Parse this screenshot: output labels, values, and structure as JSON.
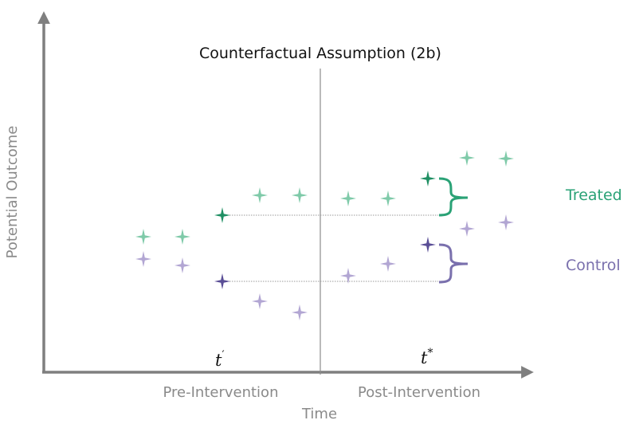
{
  "title": "Counterfactual Assumption (2b)",
  "axes": {
    "x_label": "Time",
    "y_label": "Potential Outcome"
  },
  "phases": {
    "pre": "Pre-Intervention",
    "post": "Post-Intervention"
  },
  "time_marks": {
    "t_prime_base": "t",
    "t_prime_sup": "′",
    "t_star_base": "t",
    "t_star_sup": "*"
  },
  "legend": {
    "treated": "Treated",
    "control": "Control"
  },
  "colors": {
    "treated": "#7fcaa9",
    "treated_highlight": "#1f8f63",
    "control": "#b2a6d3",
    "control_highlight": "#5a4e96",
    "treated_label": "#2aa276",
    "control_label": "#7a70ad",
    "axis": "#7f7f7f"
  },
  "icons": {
    "point": "four-point-star-icon",
    "bracket": "curly-brace-icon"
  }
}
